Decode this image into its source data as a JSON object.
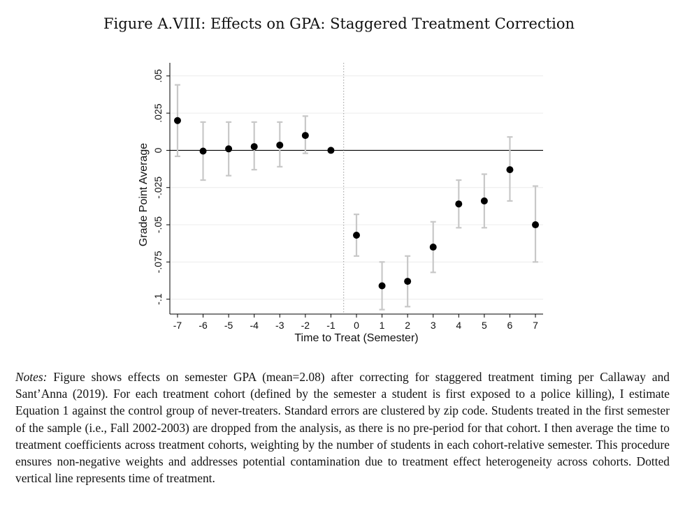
{
  "figure": {
    "title": "Figure A.VIII: Effects on GPA: Staggered Treatment Correction",
    "notes_lead": "Notes:",
    "notes_body": "Figure shows effects on semester GPA (mean=2.08) after correcting for staggered treatment timing per Callaway and Sant’Anna (2019). For each treatment cohort (defined by the semester a student is first exposed to a police killing), I estimate Equation 1 against the control group of never-treaters. Standard errors are clustered by zip code. Students treated in the first semester of the sample (i.e., Fall 2002-2003) are dropped from the analysis, as there is no pre-period for that cohort. I then average the time to treatment coefficients across treatment cohorts, weighting by the number of students in each cohort-relative semester. This procedure ensures non-negative weights and addresses potential contamination due to treatment effect heterogeneity across cohorts. Dotted vertical line represents time of treatment."
  },
  "chart_data": {
    "type": "scatter",
    "title": "",
    "xlabel": "Time to Treat (Semester)",
    "ylabel": "Grade Point Average",
    "x": [
      -7,
      -6,
      -5,
      -4,
      -3,
      -2,
      -1,
      0,
      1,
      2,
      3,
      4,
      5,
      6,
      7
    ],
    "x_tick_labels": [
      "-7",
      "-6",
      "-5",
      "-4",
      "-3",
      "-2",
      "-1",
      "0",
      "1",
      "2",
      "3",
      "4",
      "5",
      "6",
      "7"
    ],
    "y": [
      0.02,
      -0.0005,
      0.001,
      0.0025,
      0.0035,
      0.01,
      0.0,
      -0.057,
      -0.091,
      -0.088,
      -0.065,
      -0.036,
      -0.034,
      -0.013,
      -0.05
    ],
    "ci_lower": [
      -0.004,
      -0.02,
      -0.017,
      -0.013,
      -0.011,
      -0.002,
      null,
      -0.071,
      -0.107,
      -0.105,
      -0.082,
      -0.052,
      -0.052,
      -0.034,
      -0.075
    ],
    "ci_upper": [
      0.044,
      0.019,
      0.019,
      0.019,
      0.019,
      0.023,
      null,
      -0.043,
      -0.075,
      -0.071,
      -0.048,
      -0.02,
      -0.016,
      0.009,
      -0.024
    ],
    "y_ticks": [
      0.05,
      0.025,
      0,
      -0.025,
      -0.05,
      -0.075,
      -0.1
    ],
    "y_tick_labels": [
      ".05",
      ".025",
      "0",
      "-.025",
      "-.05",
      "-.075",
      "-.1"
    ],
    "xlim": [
      -7.3,
      7.3
    ],
    "ylim": [
      -0.11,
      0.056
    ],
    "reference_hline": 0,
    "treatment_vline": -0.5,
    "grid": true,
    "legend": "none",
    "colors": {
      "point": "#000000",
      "ci": "#c8c8c8",
      "grid": "#ececec",
      "axis": "#000000",
      "vline": "#999999"
    }
  }
}
